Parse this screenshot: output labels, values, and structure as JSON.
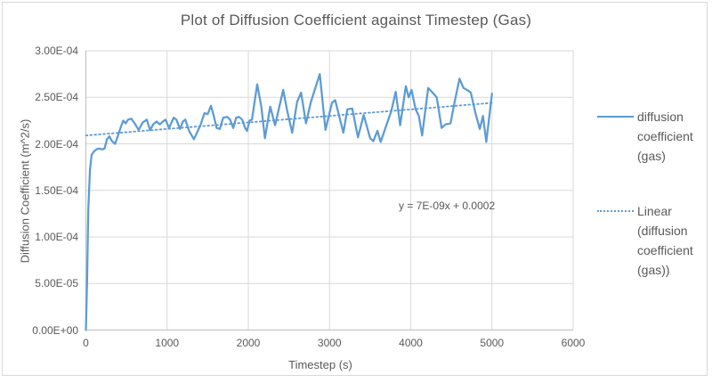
{
  "chart_data": {
    "type": "line",
    "title": "Plot of Diffusion Coefficient against Timestep (Gas)",
    "xlabel": "Timestep (s)",
    "ylabel": "Diffusion Coefficient (m^2/s)",
    "xlim": [
      0,
      6000
    ],
    "ylim": [
      0,
      0.0003
    ],
    "grid": true,
    "x_ticks": [
      {
        "label": "0",
        "value": 0
      },
      {
        "label": "1000",
        "value": 1000
      },
      {
        "label": "2000",
        "value": 2000
      },
      {
        "label": "3000",
        "value": 3000
      },
      {
        "label": "4000",
        "value": 4000
      },
      {
        "label": "5000",
        "value": 5000
      },
      {
        "label": "6000",
        "value": 6000
      }
    ],
    "y_ticks": [
      {
        "label": "0.00E+00",
        "value": 0
      },
      {
        "label": "5.00E-05",
        "value": 5e-05
      },
      {
        "label": "1.00E-04",
        "value": 0.0001
      },
      {
        "label": "1.50E-04",
        "value": 0.00015
      },
      {
        "label": "2.00E-04",
        "value": 0.0002
      },
      {
        "label": "2.50E-04",
        "value": 0.00025
      },
      {
        "label": "3.00E-04",
        "value": 0.0003
      }
    ],
    "series": [
      {
        "name": "diffusion coefficient (gas)",
        "style": "solid",
        "color": "#5b9bd5",
        "x": [
          0,
          15,
          30,
          50,
          70,
          100,
          130,
          160,
          200,
          230,
          260,
          290,
          320,
          360,
          400,
          430,
          460,
          490,
          520,
          560,
          600,
          650,
          700,
          750,
          790,
          830,
          870,
          910,
          950,
          980,
          1025,
          1080,
          1115,
          1160,
          1195,
          1225,
          1270,
          1330,
          1410,
          1460,
          1500,
          1540,
          1575,
          1610,
          1650,
          1690,
          1740,
          1775,
          1815,
          1850,
          1885,
          1925,
          1960,
          1985,
          2015,
          2045,
          2110,
          2160,
          2205,
          2270,
          2330,
          2430,
          2480,
          2540,
          2600,
          2650,
          2710,
          2770,
          2880,
          2950,
          3030,
          3070,
          3170,
          3220,
          3280,
          3350,
          3420,
          3500,
          3540,
          3590,
          3630,
          3700,
          3760,
          3815,
          3870,
          3940,
          3975,
          4010,
          4060,
          4100,
          4140,
          4215,
          4260,
          4320,
          4380,
          4430,
          4490,
          4540,
          4600,
          4650,
          4710,
          4740,
          4800,
          4850,
          4890,
          4930,
          5000
        ],
        "y": [
          0,
          5.5e-05,
          0.00013,
          0.000172,
          0.000188,
          0.000192,
          0.000194,
          0.000195,
          0.000194,
          0.000195,
          0.000205,
          0.000208,
          0.000203,
          0.0002,
          0.00021,
          0.000218,
          0.000225,
          0.000222,
          0.000226,
          0.000227,
          0.000222,
          0.000215,
          0.000223,
          0.000226,
          0.000215,
          0.000221,
          0.000224,
          0.000221,
          0.000224,
          0.000226,
          0.000217,
          0.000228,
          0.000226,
          0.000216,
          0.000224,
          0.000226,
          0.000214,
          0.000205,
          0.00022,
          0.000233,
          0.000232,
          0.000241,
          0.00023,
          0.000217,
          0.000216,
          0.000228,
          0.000229,
          0.000226,
          0.000217,
          0.000228,
          0.000229,
          0.000226,
          0.000217,
          0.000214,
          0.000225,
          0.000226,
          0.000264,
          0.00024,
          0.000206,
          0.00024,
          0.00022,
          0.000258,
          0.000235,
          0.000212,
          0.000245,
          0.000255,
          0.000222,
          0.000245,
          0.000275,
          0.000215,
          0.000244,
          0.000247,
          0.000212,
          0.000237,
          0.000238,
          0.000207,
          0.000231,
          0.000206,
          0.000203,
          0.000214,
          0.000202,
          0.00022,
          0.000235,
          0.000256,
          0.00022,
          0.000262,
          0.00025,
          0.000258,
          0.000237,
          0.00023,
          0.000209,
          0.00026,
          0.000256,
          0.00025,
          0.000217,
          0.000221,
          0.000222,
          0.000245,
          0.00027,
          0.00026,
          0.000257,
          0.000255,
          0.000232,
          0.000216,
          0.00023,
          0.000202,
          0.000254
        ]
      },
      {
        "name": "Linear (diffusion coefficient (gas))",
        "style": "dotted",
        "color": "#5b9bd5",
        "trendline": {
          "slope": 7e-09,
          "intercept": 0.000209,
          "x_start": 0,
          "x_end": 5000
        }
      }
    ],
    "legend": {
      "position": "right",
      "entries": [
        {
          "label": "diffusion coefficient (gas)",
          "marker": "solid-line"
        },
        {
          "label": "Linear (diffusion coefficient (gas))",
          "marker": "dotted-line"
        }
      ]
    },
    "annotations": [
      {
        "text": "y = 7E-09x + 0.0002",
        "x": 4445,
        "y": 0.0001325
      }
    ],
    "colors": {
      "series": "#5b9bd5",
      "trendline": "#5b9bd5",
      "gridline": "#d9d9d9",
      "axis": "#bfbfbf",
      "text": "#595959",
      "border": "#d9d9d9",
      "background": "#ffffff"
    }
  }
}
